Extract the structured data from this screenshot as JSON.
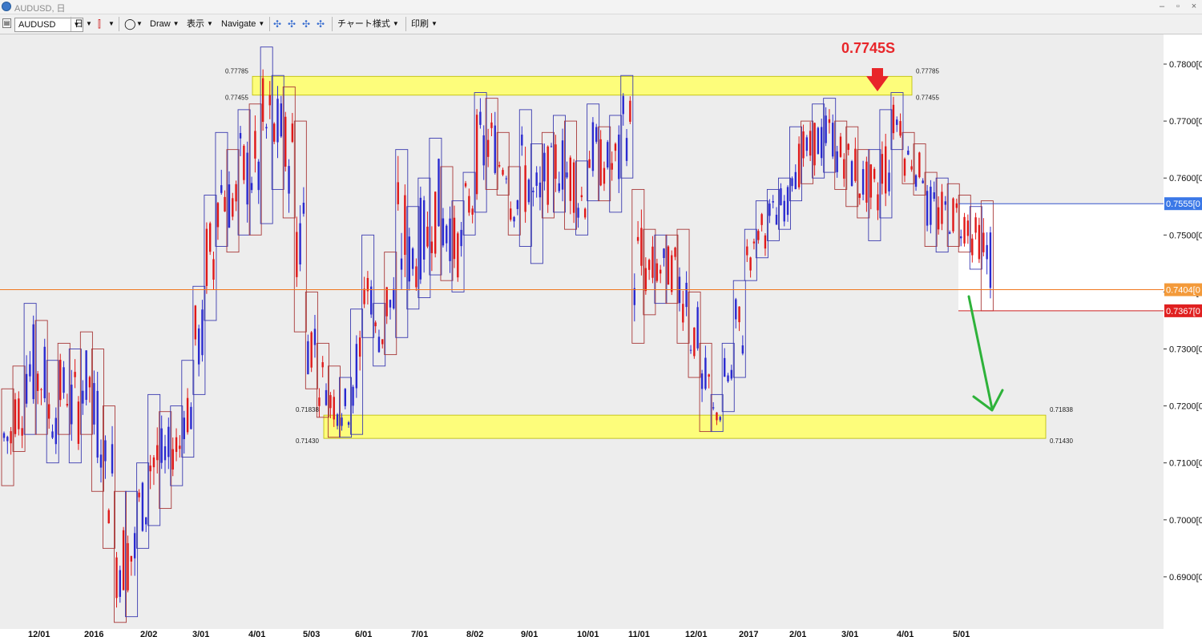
{
  "window": {
    "title": "AUDUSD, 日"
  },
  "toolbar": {
    "symbol": "AUDUSD",
    "timeframe": "日",
    "draw": "Draw",
    "view": "表示",
    "navigate": "Navigate",
    "chart_style": "チャート様式",
    "print": "印刷"
  },
  "colors": {
    "bull_candle": "#2a2ad0",
    "bear_candle": "#e01818",
    "zone_fill": "#ffff66",
    "current_price_line": "#f07820",
    "arrow_red": "#e8262a",
    "arrow_green": "#2eb23a"
  },
  "chart": {
    "annotation": "0.7745S",
    "zones": [
      {
        "name": "resistance",
        "upper_label": "0.77785",
        "lower_label": "0.77455",
        "upper": 0.77785,
        "lower": 0.77455
      },
      {
        "name": "support",
        "upper_label": "0.71838",
        "lower_label": "0.71430",
        "upper": 0.71838,
        "lower": 0.7143
      }
    ],
    "price_ticks": [
      "0.7800[0",
      "0.7700[0",
      "0.7600[0",
      "0.7500[0",
      "0.7400[0",
      "0.7300[0",
      "0.7200[0",
      "0.7100[0",
      "0.7000[0",
      "0.6900[0"
    ],
    "price_tick_values": [
      0.78,
      0.77,
      0.76,
      0.75,
      0.74,
      0.73,
      0.72,
      0.71,
      0.7,
      0.69
    ],
    "price_tags": [
      {
        "label": "0.7555[0",
        "value": 0.7555,
        "bg": "#3b78e7",
        "fg": "#ffffff"
      },
      {
        "label": "0.7404[0",
        "value": 0.7404,
        "bg": "#f39a3a",
        "fg": "#ffffff"
      },
      {
        "label": "0.7367[0",
        "value": 0.7367,
        "bg": "#e02020",
        "fg": "#ffffff"
      }
    ],
    "date_ticks": [
      "12/01",
      "2016",
      "2/02",
      "3/01",
      "4/01",
      "5/03",
      "6/01",
      "7/01",
      "8/02",
      "9/01",
      "10/01",
      "11/01",
      "12/01",
      "2017",
      "2/01",
      "3/01",
      "4/01",
      "5/01"
    ],
    "weekly_boxes": [
      [
        0.723,
        0.706,
        0
      ],
      [
        0.727,
        0.712,
        0
      ],
      [
        0.738,
        0.715,
        1
      ],
      [
        0.735,
        0.715,
        0
      ],
      [
        0.728,
        0.71,
        1
      ],
      [
        0.731,
        0.715,
        0
      ],
      [
        0.73,
        0.71,
        1
      ],
      [
        0.733,
        0.715,
        0
      ],
      [
        0.73,
        0.705,
        0
      ],
      [
        0.72,
        0.695,
        0
      ],
      [
        0.705,
        0.682,
        0
      ],
      [
        0.705,
        0.683,
        1
      ],
      [
        0.71,
        0.695,
        1
      ],
      [
        0.722,
        0.699,
        1
      ],
      [
        0.719,
        0.702,
        0
      ],
      [
        0.72,
        0.706,
        1
      ],
      [
        0.728,
        0.711,
        1
      ],
      [
        0.741,
        0.722,
        1
      ],
      [
        0.757,
        0.735,
        1
      ],
      [
        0.768,
        0.748,
        1
      ],
      [
        0.765,
        0.747,
        0
      ],
      [
        0.772,
        0.75,
        1
      ],
      [
        0.773,
        0.75,
        0
      ],
      [
        0.783,
        0.752,
        1
      ],
      [
        0.778,
        0.758,
        1
      ],
      [
        0.776,
        0.753,
        0
      ],
      [
        0.77,
        0.733,
        0
      ],
      [
        0.74,
        0.723,
        0
      ],
      [
        0.731,
        0.718,
        0
      ],
      [
        0.727,
        0.7145,
        0
      ],
      [
        0.725,
        0.7145,
        1
      ],
      [
        0.737,
        0.715,
        1
      ],
      [
        0.75,
        0.732,
        1
      ],
      [
        0.738,
        0.727,
        1
      ],
      [
        0.747,
        0.729,
        0
      ],
      [
        0.765,
        0.732,
        1
      ],
      [
        0.755,
        0.737,
        1
      ],
      [
        0.76,
        0.739,
        1
      ],
      [
        0.767,
        0.743,
        1
      ],
      [
        0.762,
        0.742,
        0
      ],
      [
        0.756,
        0.74,
        1
      ],
      [
        0.761,
        0.75,
        1
      ],
      [
        0.775,
        0.754,
        1
      ],
      [
        0.774,
        0.758,
        0
      ],
      [
        0.768,
        0.757,
        0
      ],
      [
        0.762,
        0.75,
        0
      ],
      [
        0.772,
        0.748,
        1
      ],
      [
        0.766,
        0.745,
        1
      ],
      [
        0.768,
        0.753,
        0
      ],
      [
        0.771,
        0.754,
        1
      ],
      [
        0.77,
        0.751,
        0
      ],
      [
        0.763,
        0.75,
        1
      ],
      [
        0.773,
        0.756,
        1
      ],
      [
        0.769,
        0.756,
        0
      ],
      [
        0.771,
        0.754,
        1
      ],
      [
        0.778,
        0.76,
        1
      ],
      [
        0.758,
        0.731,
        0
      ],
      [
        0.751,
        0.736,
        0
      ],
      [
        0.75,
        0.738,
        1
      ],
      [
        0.75,
        0.738,
        0
      ],
      [
        0.751,
        0.731,
        0
      ],
      [
        0.74,
        0.725,
        0
      ],
      [
        0.731,
        0.7155,
        0
      ],
      [
        0.722,
        0.7155,
        1
      ],
      [
        0.731,
        0.719,
        1
      ],
      [
        0.742,
        0.725,
        1
      ],
      [
        0.751,
        0.742,
        1
      ],
      [
        0.756,
        0.746,
        1
      ],
      [
        0.758,
        0.749,
        1
      ],
      [
        0.76,
        0.751,
        1
      ],
      [
        0.769,
        0.756,
        1
      ],
      [
        0.77,
        0.759,
        0
      ],
      [
        0.773,
        0.76,
        1
      ],
      [
        0.774,
        0.761,
        1
      ],
      [
        0.77,
        0.758,
        0
      ],
      [
        0.769,
        0.755,
        0
      ],
      [
        0.765,
        0.753,
        0
      ],
      [
        0.765,
        0.749,
        1
      ],
      [
        0.772,
        0.753,
        1
      ],
      [
        0.775,
        0.765,
        1
      ],
      [
        0.768,
        0.759,
        0
      ],
      [
        0.766,
        0.757,
        0
      ],
      [
        0.761,
        0.748,
        0
      ],
      [
        0.76,
        0.747,
        1
      ],
      [
        0.759,
        0.748,
        0
      ],
      [
        0.757,
        0.747,
        0
      ],
      [
        0.755,
        0.744,
        1
      ],
      [
        0.756,
        0.7367,
        0
      ]
    ]
  }
}
